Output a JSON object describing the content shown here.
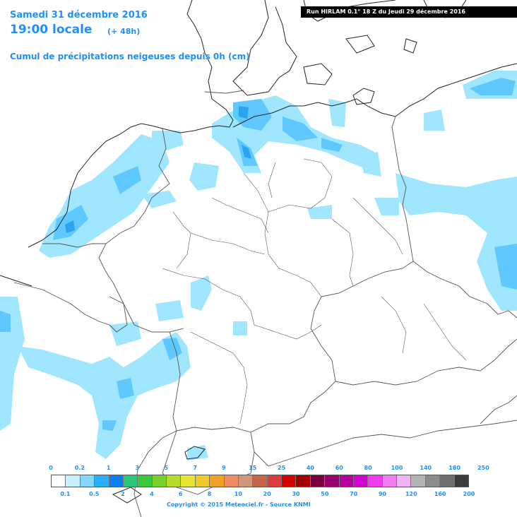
{
  "header": {
    "date": "Samedi 31 décembre 2016",
    "time": "19:00 locale",
    "lead": "(+ 48h)",
    "variable": "Cumul de précipitations neigeuses depuis 0h (cm)"
  },
  "run_info": "Run HIRLAM 0.1° 18 Z du Jeudi 29 décembre 2016",
  "legend": {
    "upper_labels": [
      "0",
      "0.2",
      "1",
      "3",
      "5",
      "7",
      "9",
      "15",
      "25",
      "40",
      "60",
      "80",
      "100",
      "140",
      "180",
      "250"
    ],
    "lower_labels": [
      "0.1",
      "0.5",
      "2",
      "4",
      "6",
      "8",
      "10",
      "20",
      "30",
      "50",
      "70",
      "90",
      "120",
      "160",
      "200"
    ],
    "colors": [
      "#ffffff",
      "#c8f0ff",
      "#7fd8ff",
      "#2ab0ff",
      "#0a7fef",
      "#28c878",
      "#3cc83c",
      "#78d22a",
      "#b4dc28",
      "#e6e632",
      "#f0c828",
      "#f0a028",
      "#f08c64",
      "#d2967d",
      "#c86446",
      "#dc3c3c",
      "#d20000",
      "#a00000",
      "#78003c",
      "#96006e",
      "#b400a0",
      "#d200d2",
      "#f03cf0",
      "#f07cf0",
      "#f0b4f0",
      "#b4b4b4",
      "#8c8c8c",
      "#6e6e6e",
      "#3c3c3c"
    ]
  },
  "credit": "Copyright © 2015 Meteociel.fr - Source KNMI",
  "map": {
    "snow_colors": {
      "light": "#a0e6ff",
      "medium": "#5ec8ff",
      "heavy": "#2ba4ee"
    },
    "border_color": "#666666",
    "coast_color": "#222222"
  }
}
